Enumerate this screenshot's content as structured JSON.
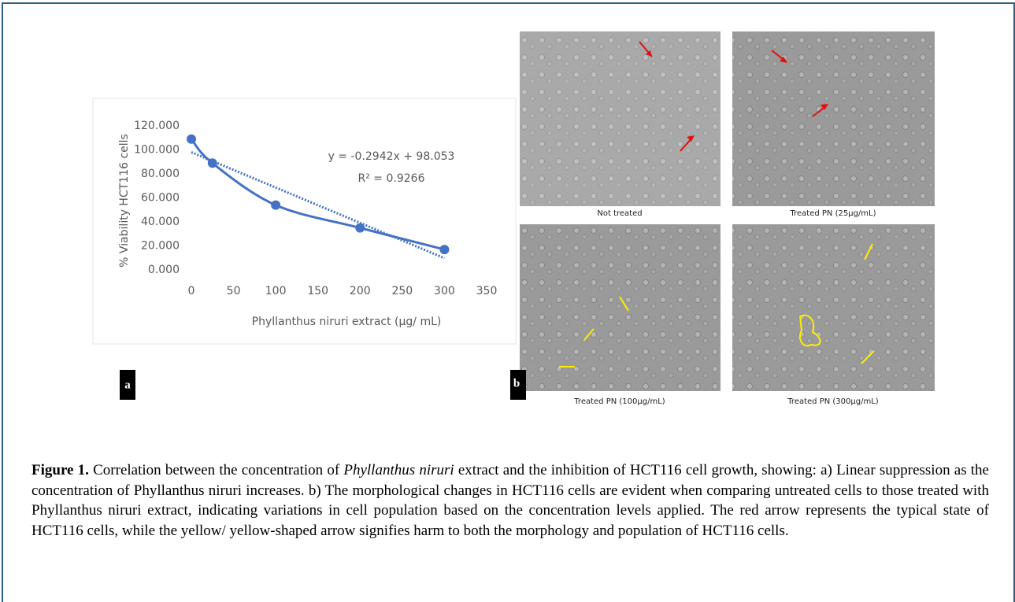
{
  "chart_data": {
    "type": "line",
    "x_label": "Phyllanthus niruri extract (µg/ mL)",
    "y_label": "% Viability HCT116 cells",
    "x": [
      0,
      25,
      100,
      200,
      300
    ],
    "series": [
      {
        "color": "#4472c4",
        "values": [
          109,
          89,
          54,
          35,
          17
        ]
      }
    ],
    "trendline": {
      "slope": -0.2942,
      "intercept": 98.053,
      "equation": "y = -0.2942x + 98.053",
      "r_squared": "R² = 0.9266"
    },
    "xlim": [
      0,
      350
    ],
    "ylim": [
      0,
      120
    ],
    "xticks": [
      0,
      50,
      100,
      150,
      200,
      250,
      300,
      350
    ],
    "yticks": [
      {
        "value": 0,
        "label": "0.000"
      },
      {
        "value": 20,
        "label": "20.000"
      },
      {
        "value": 40,
        "label": "40.000"
      },
      {
        "value": 60,
        "label": "60.000"
      },
      {
        "value": 80,
        "label": "80.000"
      },
      {
        "value": 100,
        "label": "100.000"
      },
      {
        "value": 120,
        "label": "120.000"
      }
    ]
  },
  "panels": {
    "a": "a",
    "b": "b"
  },
  "micrographs": [
    {
      "caption": "Not treated"
    },
    {
      "caption": "Treated PN (25µg/mL)"
    },
    {
      "caption": "Treated PN (100µg/mL)"
    },
    {
      "caption": "Treated PN (300µg/mL)"
    }
  ],
  "caption": {
    "label": "Figure 1.",
    "before": " Correlation between the concentration of ",
    "species": "Phyllanthus niruri",
    "after": " extract and the inhibition of HCT116 cell growth, showing: a) Linear suppression as the concentration of Phyllanthus niruri increases. b) The morphological changes in HCT116 cells are evident when comparing untreated cells to those treated with Phyllanthus niruri extract, indicating variations in cell population based on the concentration levels applied. The red arrow represents the typical state of HCT116 cells, while the yellow/ yellow-shaped arrow signifies harm to both the morphology and population of HCT116 cells."
  }
}
